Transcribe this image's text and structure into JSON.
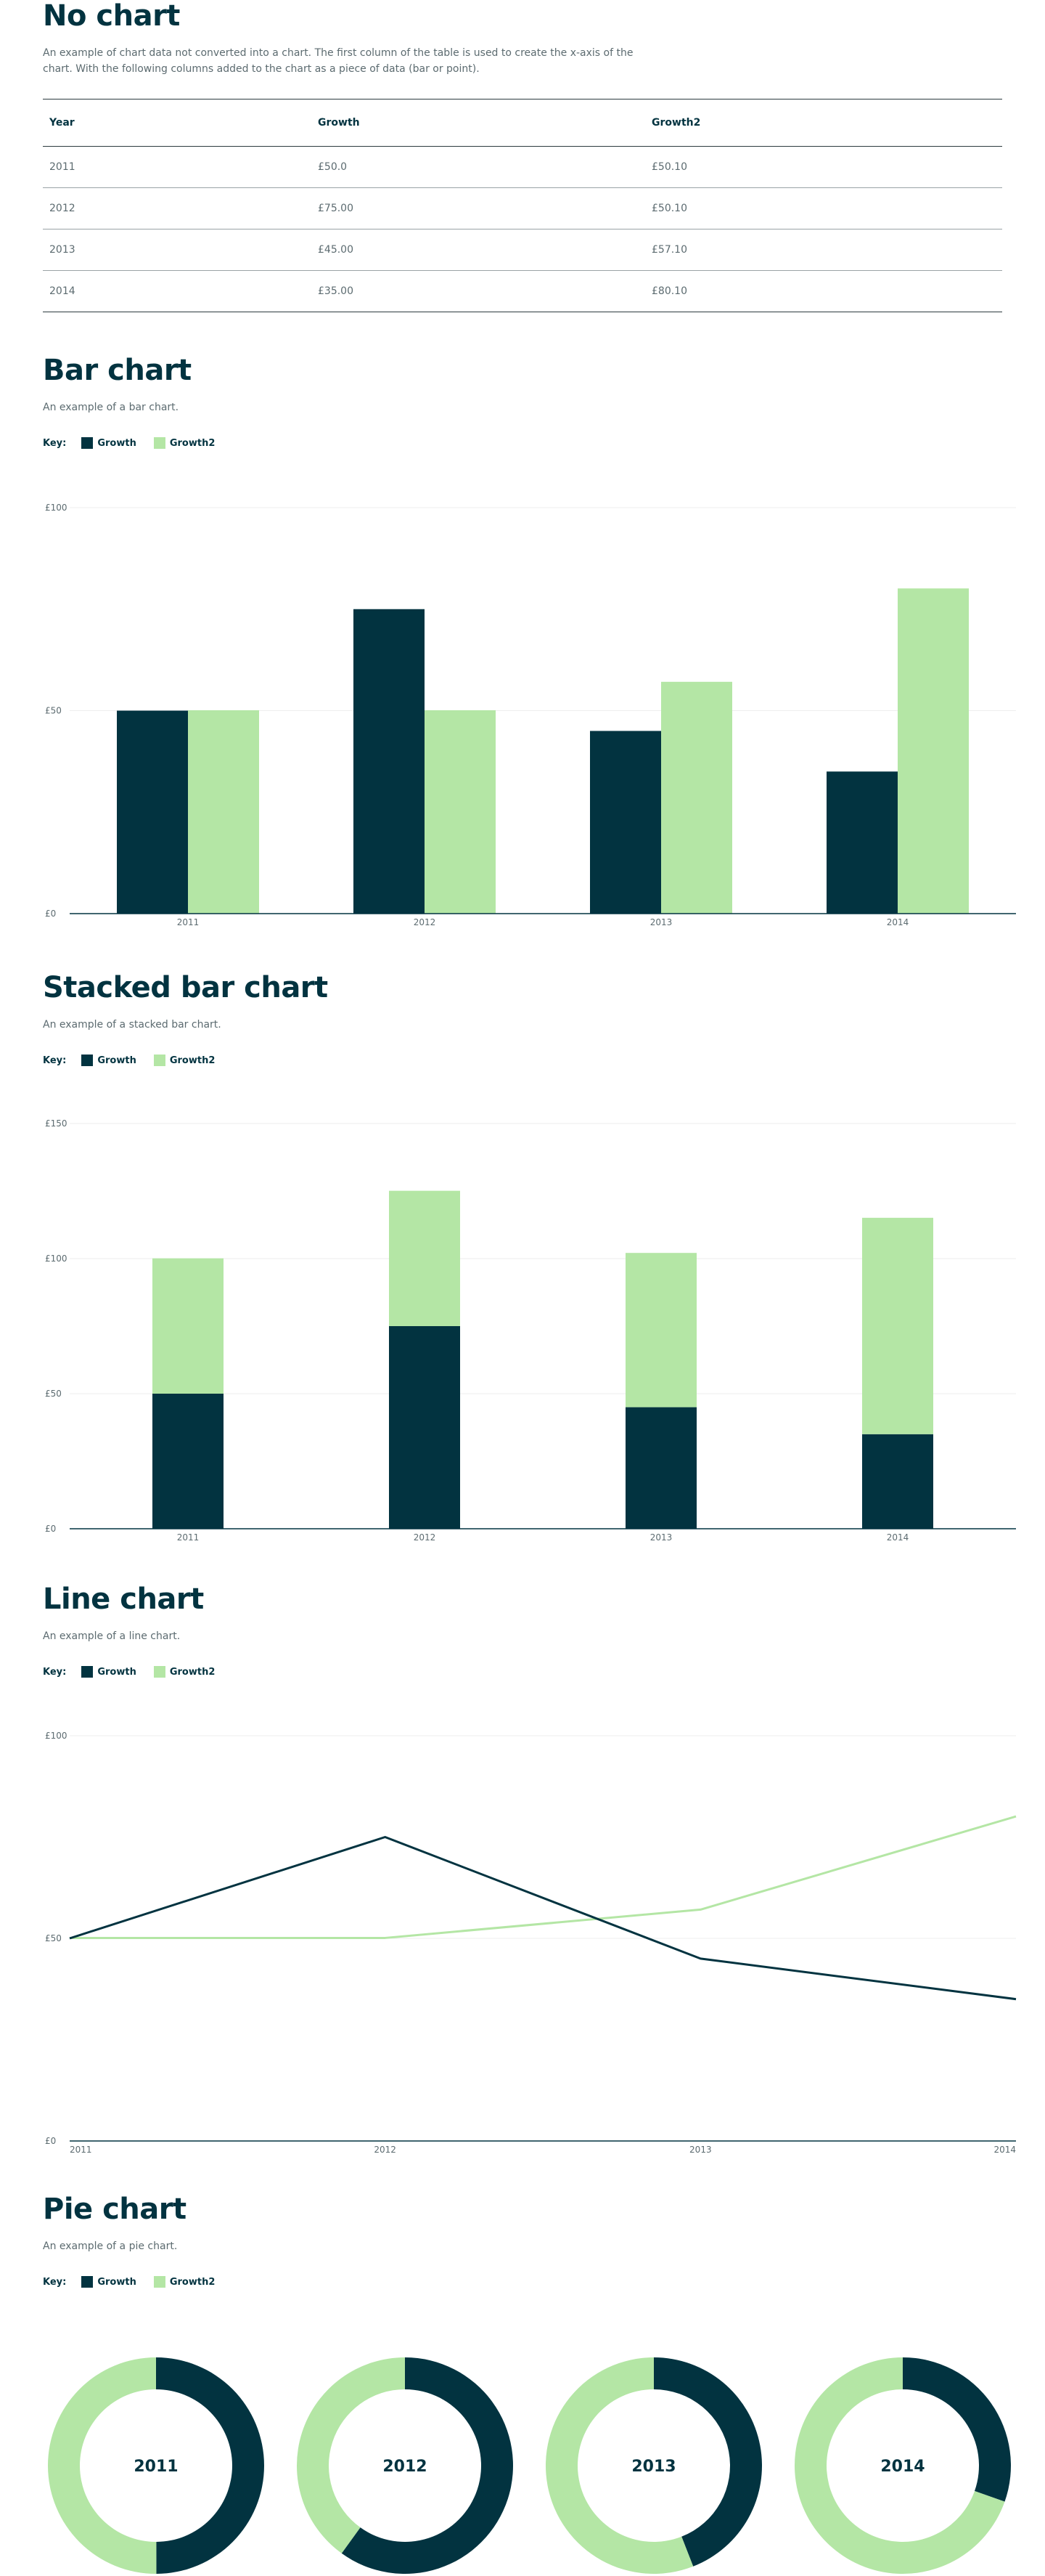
{
  "colors": {
    "dark": "#023340",
    "light": "#b4e6a5",
    "grid": "#eeeeee",
    "axis": "#023340"
  },
  "nochart": {
    "title": "No chart",
    "description_line1": "An example of chart data not converted into a chart. The first column of the table is used to create the x-axis of the",
    "description_line2": "chart. With the following columns added to the chart as a piece of data (bar or point).",
    "headers": [
      "Year",
      "Growth",
      "Growth2"
    ],
    "rows": [
      [
        "2011",
        "£50.0",
        "£50.10"
      ],
      [
        "2012",
        "£75.00",
        "£50.10"
      ],
      [
        "2013",
        "£45.00",
        "£57.10"
      ],
      [
        "2014",
        "£35.00",
        "£80.10"
      ]
    ]
  },
  "key": {
    "label": "Key:",
    "series1": "Growth",
    "series2": "Growth2"
  },
  "bar": {
    "title": "Bar chart",
    "description": "An example of a bar chart."
  },
  "stacked": {
    "title": "Stacked bar chart",
    "description": "An example of a stacked bar chart."
  },
  "line": {
    "title": "Line chart",
    "description": "An example of a line chart."
  },
  "pie": {
    "title": "Pie chart",
    "description": "An example of a pie chart."
  },
  "chart_data": [
    {
      "type": "bar",
      "categories": [
        "2011",
        "2012",
        "2013",
        "2014"
      ],
      "series": [
        {
          "name": "Growth",
          "values": [
            50,
            75,
            45,
            35
          ]
        },
        {
          "name": "Growth2",
          "values": [
            50.1,
            50.1,
            57.1,
            80.1
          ]
        }
      ],
      "yticks": [
        "£0",
        "£50",
        "£100"
      ],
      "ylim": [
        0,
        100
      ],
      "grid": true,
      "legend": "top-left"
    },
    {
      "type": "bar",
      "stacked": true,
      "categories": [
        "2011",
        "2012",
        "2013",
        "2014"
      ],
      "series": [
        {
          "name": "Growth",
          "values": [
            50,
            75,
            45,
            35
          ]
        },
        {
          "name": "Growth2",
          "values": [
            50.1,
            50.1,
            57.1,
            80.1
          ]
        }
      ],
      "yticks": [
        "£0",
        "£50",
        "£100",
        "£150"
      ],
      "ylim": [
        0,
        150
      ],
      "grid": true,
      "legend": "top-left"
    },
    {
      "type": "line",
      "categories": [
        "2011",
        "2012",
        "2013",
        "2014"
      ],
      "series": [
        {
          "name": "Growth",
          "values": [
            50,
            75,
            45,
            35
          ]
        },
        {
          "name": "Growth2",
          "values": [
            50.1,
            50.1,
            57.1,
            80.1
          ]
        }
      ],
      "yticks": [
        "£0",
        "£50",
        "£100"
      ],
      "ylim": [
        0,
        100
      ],
      "grid": true,
      "legend": "top-left"
    },
    {
      "type": "pie",
      "categories": [
        "2011",
        "2012",
        "2013",
        "2014"
      ],
      "series": [
        {
          "name": "Growth",
          "values": [
            50,
            75,
            45,
            35
          ]
        },
        {
          "name": "Growth2",
          "values": [
            50.1,
            50.1,
            57.1,
            80.1
          ]
        }
      ],
      "donut": true,
      "legend": "top-left"
    }
  ]
}
